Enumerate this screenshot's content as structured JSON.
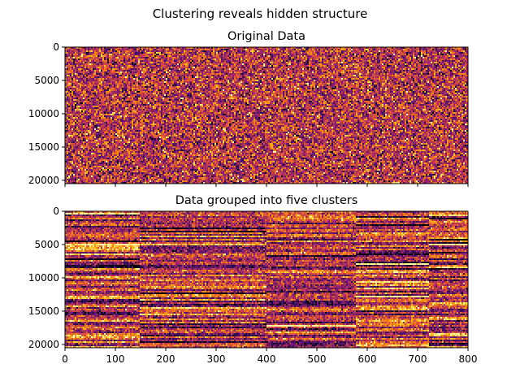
{
  "figure": {
    "suptitle": "Clustering reveals hidden structure"
  },
  "colors": {
    "colormap": "inferno",
    "background": "#ffffff",
    "axes": "#000000"
  },
  "chart_data": [
    {
      "type": "heatmap",
      "title": "Original Data",
      "xlabel": "",
      "ylabel": "",
      "colormap": "inferno",
      "xlim": [
        0,
        800
      ],
      "ylim": [
        20500,
        0
      ],
      "y_ticks": [
        "0",
        "5000",
        "10000",
        "15000",
        "20000"
      ],
      "x_ticks": [],
      "x_tick_values": [
        0,
        100,
        200,
        300,
        400,
        500,
        600,
        700,
        800
      ],
      "grid": false,
      "pattern": "random",
      "column_segments": [
        0,
        800
      ]
    },
    {
      "type": "heatmap",
      "title": "Data grouped into five clusters",
      "xlabel": "",
      "ylabel": "",
      "colormap": "inferno",
      "xlim": [
        0,
        800
      ],
      "ylim": [
        20500,
        0
      ],
      "y_ticks": [
        "0",
        "5000",
        "10000",
        "15000",
        "20000"
      ],
      "x_ticks": [
        "0",
        "100",
        "200",
        "300",
        "400",
        "500",
        "600",
        "700",
        "800"
      ],
      "x_tick_values": [
        0,
        100,
        200,
        300,
        400,
        500,
        600,
        700,
        800
      ],
      "grid": false,
      "pattern": "clustered",
      "column_segments": [
        0,
        148,
        400,
        578,
        724,
        800
      ]
    }
  ]
}
